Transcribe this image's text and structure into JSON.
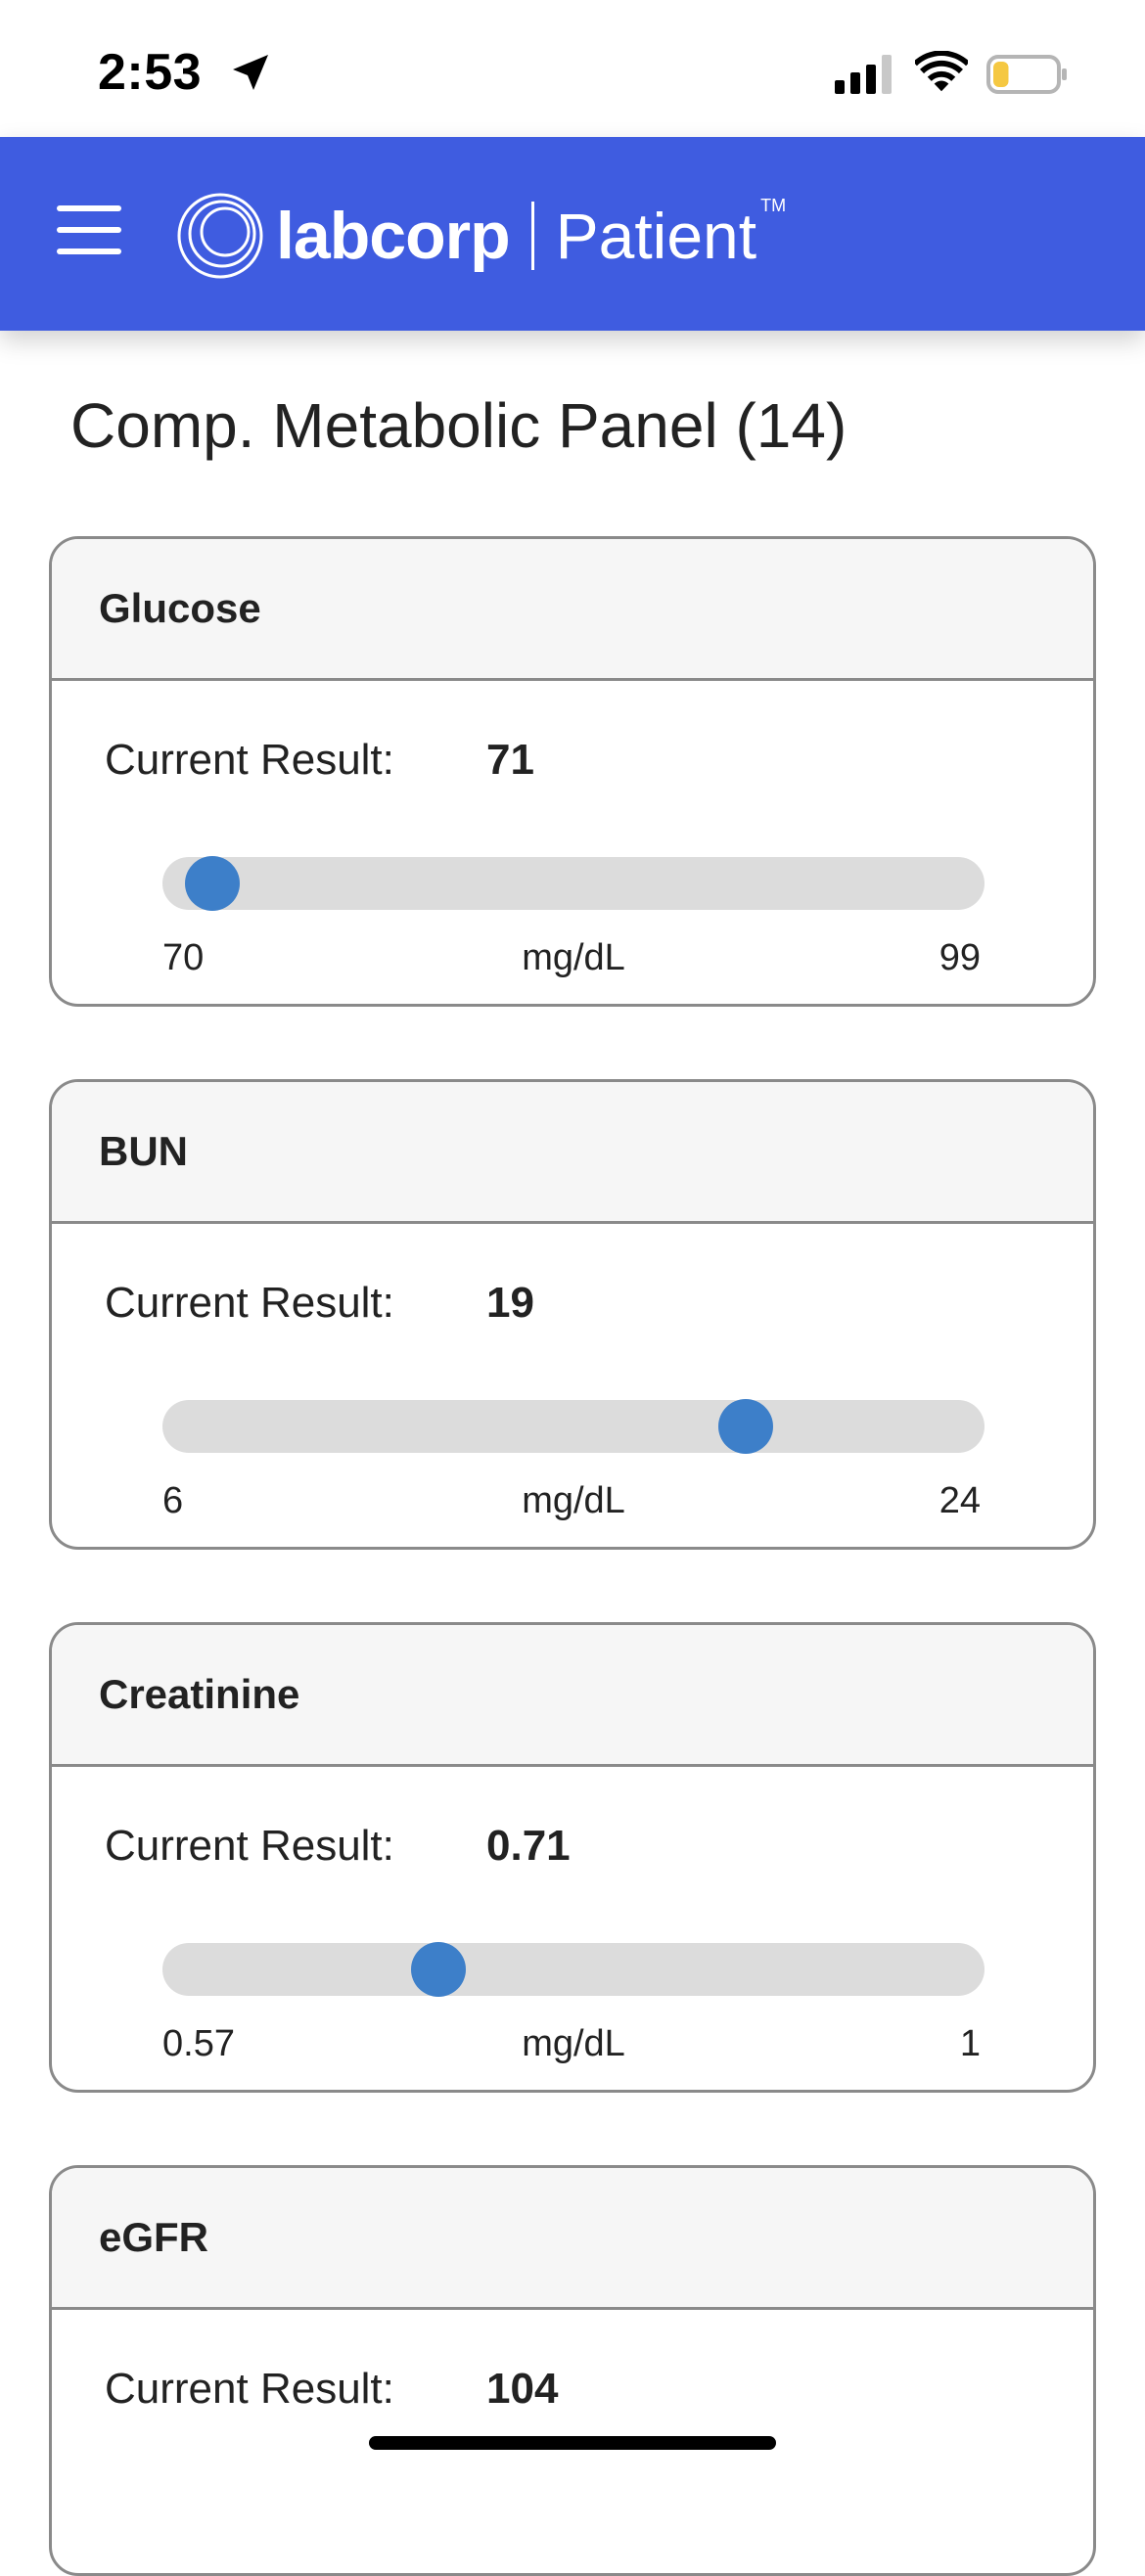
{
  "status_bar": {
    "time": "2:53",
    "icons": [
      "location-arrow-icon",
      "cellular-signal-icon",
      "wifi-icon",
      "battery-icon"
    ],
    "battery_level": 0.25,
    "battery_color": "#f5c842"
  },
  "header": {
    "background": "#3f5ce0",
    "menu_icon": "hamburger-menu-icon",
    "logo": {
      "brand": "labcorp",
      "product": "Patient",
      "tm": "TM"
    }
  },
  "page_title": "Comp. Metabolic Panel (14)",
  "result_label": "Current Result:",
  "tests": [
    {
      "name": "Glucose",
      "value": "71",
      "min": "70",
      "max": "99",
      "unit": "mg/dL",
      "min_num": 70,
      "max_num": 99,
      "value_num": 71
    },
    {
      "name": "BUN",
      "value": "19",
      "min": "6",
      "max": "24",
      "unit": "mg/dL",
      "min_num": 6,
      "max_num": 24,
      "value_num": 19
    },
    {
      "name": "Creatinine",
      "value": "0.71",
      "min": "0.57",
      "max": "1",
      "unit": "mg/dL",
      "min_num": 0.57,
      "max_num": 1,
      "value_num": 0.71
    },
    {
      "name": "eGFR",
      "value": "104"
    }
  ],
  "colors": {
    "slider_thumb": "#3d7fc9",
    "slider_track": "#dcdcdc"
  }
}
